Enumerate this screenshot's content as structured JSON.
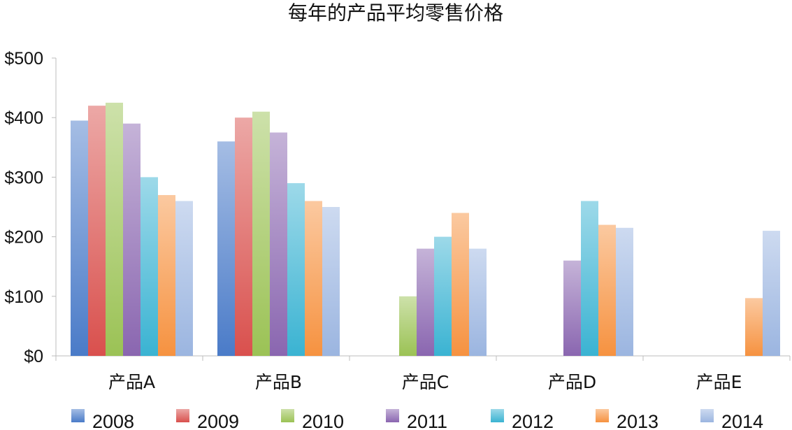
{
  "chart_data": {
    "type": "bar",
    "title": "每年的产品平均零售价格",
    "xlabel": "",
    "ylabel": "",
    "ylim": [
      0,
      500
    ],
    "yticks": [
      "$0",
      "$100",
      "$200",
      "$300",
      "$400",
      "$500"
    ],
    "grid": false,
    "legend_position": "bottom",
    "categories": [
      "产品A",
      "产品B",
      "产品C",
      "产品D",
      "产品E"
    ],
    "series": [
      {
        "name": "2008",
        "color": "#4a7bc8",
        "values": [
          395,
          360,
          null,
          null,
          null
        ]
      },
      {
        "name": "2009",
        "color": "#d9504d",
        "values": [
          420,
          400,
          null,
          null,
          null
        ]
      },
      {
        "name": "2010",
        "color": "#9bc255",
        "values": [
          425,
          410,
          100,
          null,
          null
        ]
      },
      {
        "name": "2011",
        "color": "#8a66b0",
        "values": [
          390,
          375,
          180,
          160,
          null
        ]
      },
      {
        "name": "2012",
        "color": "#3ab3d2",
        "values": [
          300,
          290,
          200,
          260,
          null
        ]
      },
      {
        "name": "2013",
        "color": "#f69240",
        "values": [
          270,
          260,
          240,
          220,
          97
        ]
      },
      {
        "name": "2014",
        "color": "#9bb5e0",
        "values": [
          260,
          250,
          180,
          215,
          210
        ]
      }
    ]
  }
}
